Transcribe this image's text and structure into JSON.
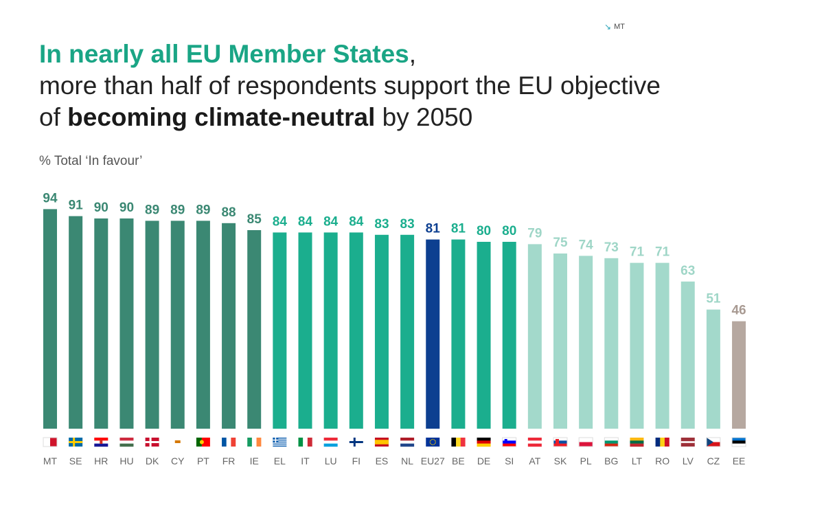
{
  "corner_label": "MT",
  "headline": {
    "line1_highlight": "In nearly all EU Member States",
    "line1_rest": ",",
    "line2": "more than half of respondents support the EU objective",
    "line3_pre": "of ",
    "line3_bold": "becoming climate-neutral",
    "line3_post": " by 2050"
  },
  "subtitle": "% Total ‘In favour’",
  "colors": {
    "dark_green": "#3b8873",
    "green": "#1bae8e",
    "light_green": "#a3d9cb",
    "eu_blue": "#0d3f90",
    "taupe": "#b6a8a0"
  },
  "chart_data": {
    "type": "bar",
    "categories": [
      "MT",
      "SE",
      "HR",
      "HU",
      "DK",
      "CY",
      "PT",
      "FR",
      "IE",
      "EL",
      "IT",
      "LU",
      "FI",
      "ES",
      "NL",
      "EU27",
      "BE",
      "DE",
      "SI",
      "AT",
      "SK",
      "PL",
      "BG",
      "LT",
      "RO",
      "LV",
      "CZ",
      "EE"
    ],
    "values": [
      94,
      91,
      90,
      90,
      89,
      89,
      89,
      88,
      85,
      84,
      84,
      84,
      84,
      83,
      83,
      81,
      81,
      80,
      80,
      79,
      75,
      74,
      73,
      71,
      71,
      63,
      51,
      46
    ],
    "groups": [
      "dark_green",
      "dark_green",
      "dark_green",
      "dark_green",
      "dark_green",
      "dark_green",
      "dark_green",
      "dark_green",
      "dark_green",
      "green",
      "green",
      "green",
      "green",
      "green",
      "green",
      "eu_blue",
      "green",
      "green",
      "green",
      "light_green",
      "light_green",
      "light_green",
      "light_green",
      "light_green",
      "light_green",
      "light_green",
      "light_green",
      "taupe"
    ],
    "ylim": [
      0,
      94
    ],
    "grid": false,
    "legend": "none",
    "flags": [
      "malta-flag",
      "sweden-flag",
      "croatia-flag",
      "hungary-flag",
      "denmark-flag",
      "cyprus-flag",
      "portugal-flag",
      "france-flag",
      "ireland-flag",
      "greece-flag",
      "italy-flag",
      "luxembourg-flag",
      "finland-flag",
      "spain-flag",
      "netherlands-flag",
      "eu-flag",
      "belgium-flag",
      "germany-flag",
      "slovenia-flag",
      "austria-flag",
      "slovakia-flag",
      "poland-flag",
      "bulgaria-flag",
      "lithuania-flag",
      "romania-flag",
      "latvia-flag",
      "czechia-flag",
      "estonia-flag"
    ]
  }
}
